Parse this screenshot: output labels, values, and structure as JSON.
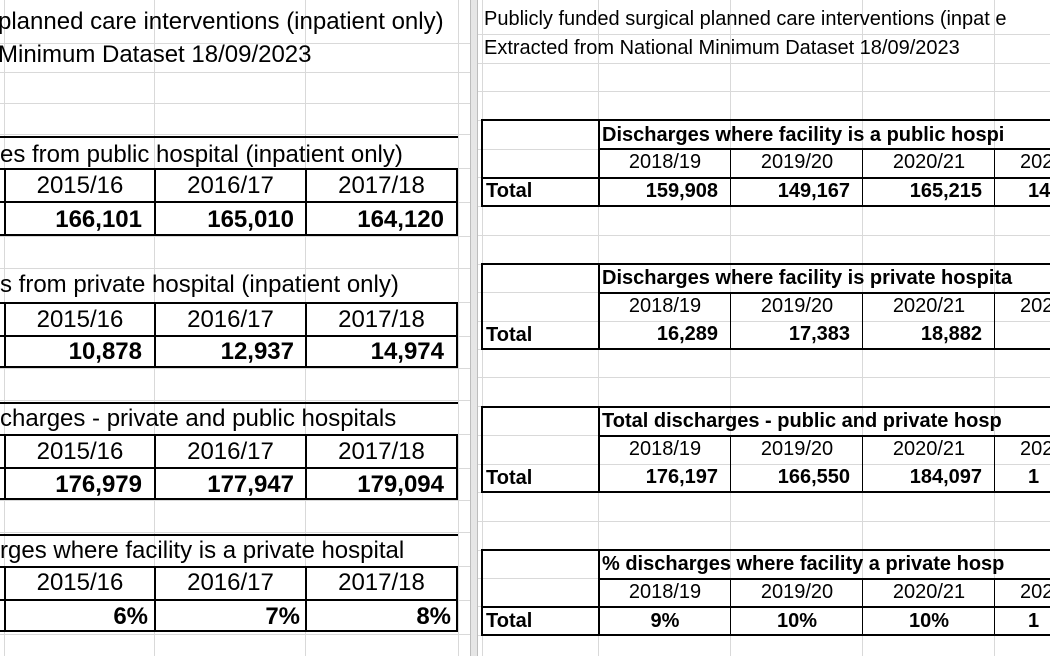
{
  "left": {
    "title_line1": "planned care interventions (inpatient only)",
    "title_line2": "Minimum Dataset 18/09/2023",
    "tables": [
      {
        "heading": "es from public hospital (inpatient only)",
        "years": [
          "2015/16",
          "2016/17",
          "2017/18"
        ],
        "values": [
          "166,101",
          "165,010",
          "164,120"
        ]
      },
      {
        "heading": "s from private hospital (inpatient only)",
        "years": [
          "2015/16",
          "2016/17",
          "2017/18"
        ],
        "values": [
          "10,878",
          "12,937",
          "14,974"
        ]
      },
      {
        "heading": "charges - private and public hospitals",
        "years": [
          "2015/16",
          "2016/17",
          "2017/18"
        ],
        "values": [
          "176,979",
          "177,947",
          "179,094"
        ]
      },
      {
        "heading": "rges where facility is a private hospital",
        "years": [
          "2015/16",
          "2016/17",
          "2017/18"
        ],
        "values": [
          "6%",
          "7%",
          "8%"
        ]
      }
    ]
  },
  "right": {
    "title_line1": "Publicly funded surgical planned care interventions (inpat e",
    "title_line2": "Extracted from National Minimum Dataset 18/09/2023",
    "row_label": "Total",
    "tables": [
      {
        "heading": "Discharges where facility is a public hospi",
        "years": [
          "2018/19",
          "2019/20",
          "2020/21",
          "202"
        ],
        "values": [
          "159,908",
          "149,167",
          "165,215",
          "14"
        ]
      },
      {
        "heading": "Discharges where facility is private hospita",
        "years": [
          "2018/19",
          "2019/20",
          "2020/21",
          "202"
        ],
        "values": [
          "16,289",
          "17,383",
          "18,882",
          ""
        ]
      },
      {
        "heading": "Total discharges - public and private hosp",
        "years": [
          "2018/19",
          "2019/20",
          "2020/21",
          "202"
        ],
        "values": [
          "176,197",
          "166,550",
          "184,097",
          "1"
        ]
      },
      {
        "heading": "% discharges where facility a private hosp",
        "years": [
          "2018/19",
          "2019/20",
          "2020/21",
          "202"
        ],
        "values": [
          "9%",
          "10%",
          "10%",
          "1"
        ]
      }
    ]
  }
}
